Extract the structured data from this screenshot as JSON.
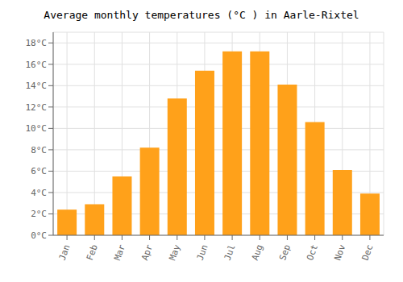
{
  "chart_data": {
    "type": "bar",
    "title": "Average monthly temperatures (°C ) in Aarle-Rixtel",
    "categories": [
      "Jan",
      "Feb",
      "Mar",
      "Apr",
      "May",
      "Jun",
      "Jul",
      "Aug",
      "Sep",
      "Oct",
      "Nov",
      "Dec"
    ],
    "values": [
      2.4,
      2.9,
      5.5,
      8.2,
      12.8,
      15.4,
      17.2,
      17.2,
      14.1,
      10.6,
      6.1,
      3.9
    ],
    "color": "#ffa11a",
    "ylim": [
      0,
      19
    ],
    "yticks": [
      {
        "value": 0,
        "label": "0°C"
      },
      {
        "value": 2,
        "label": "2°C"
      },
      {
        "value": 4,
        "label": "4°C"
      },
      {
        "value": 6,
        "label": "6°C"
      },
      {
        "value": 8,
        "label": "8°C"
      },
      {
        "value": 10,
        "label": "10°C"
      },
      {
        "value": 12,
        "label": "12°C"
      },
      {
        "value": 14,
        "label": "14°C"
      },
      {
        "value": 16,
        "label": "16°C"
      },
      {
        "value": 18,
        "label": "18°C"
      }
    ],
    "grid": true
  }
}
